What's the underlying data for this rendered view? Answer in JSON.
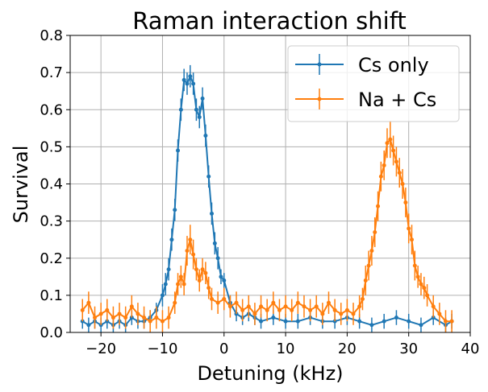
{
  "chart_data": {
    "type": "line",
    "title": "Raman interaction shift",
    "xlabel": "Detuning (kHz)",
    "ylabel": "Survival",
    "xlim": [
      -25,
      40
    ],
    "ylim": [
      0,
      0.8
    ],
    "xticks": [
      -20,
      -10,
      0,
      10,
      20,
      30,
      40
    ],
    "yticks": [
      0.0,
      0.1,
      0.2,
      0.3,
      0.4,
      0.5,
      0.6,
      0.7,
      0.8
    ],
    "xtick_labels": [
      "−20",
      "−10",
      "0",
      "10",
      "20",
      "30",
      "40"
    ],
    "ytick_labels": [
      "0.0",
      "0.1",
      "0.2",
      "0.3",
      "0.4",
      "0.5",
      "0.6",
      "0.7",
      "0.8"
    ],
    "grid": true,
    "error_bars": true,
    "legend_position": "top-right",
    "series": [
      {
        "name": "Cs only",
        "color": "#1f77b4",
        "x": [
          -23,
          -22,
          -21,
          -20,
          -19,
          -18,
          -17,
          -16,
          -15,
          -14,
          -13,
          -12,
          -11,
          -10,
          -9.5,
          -9,
          -8.5,
          -8,
          -7.5,
          -7,
          -6.5,
          -6,
          -5.5,
          -5,
          -4.5,
          -4,
          -3.5,
          -3,
          -2.5,
          -2,
          -1.5,
          -1,
          -0.5,
          0,
          1,
          2,
          3,
          4,
          5,
          6,
          8,
          10,
          12,
          14,
          16,
          18,
          20,
          22,
          24,
          26,
          28,
          30,
          32,
          34,
          36,
          37
        ],
        "values": [
          0.03,
          0.02,
          0.03,
          0.02,
          0.03,
          0.02,
          0.03,
          0.02,
          0.04,
          0.03,
          0.03,
          0.04,
          0.06,
          0.1,
          0.13,
          0.17,
          0.25,
          0.33,
          0.49,
          0.6,
          0.68,
          0.67,
          0.69,
          0.67,
          0.6,
          0.58,
          0.63,
          0.53,
          0.42,
          0.32,
          0.24,
          0.2,
          0.15,
          0.14,
          0.08,
          0.05,
          0.04,
          0.05,
          0.04,
          0.03,
          0.04,
          0.03,
          0.03,
          0.04,
          0.03,
          0.03,
          0.04,
          0.03,
          0.02,
          0.03,
          0.04,
          0.03,
          0.02,
          0.04,
          0.02,
          0.03
        ],
        "errors": [
          0.02,
          0.02,
          0.02,
          0.02,
          0.02,
          0.02,
          0.02,
          0.02,
          0.02,
          0.02,
          0.02,
          0.02,
          0.02,
          0.03,
          0.03,
          0.03,
          0.03,
          0.03,
          0.03,
          0.03,
          0.03,
          0.03,
          0.03,
          0.03,
          0.03,
          0.03,
          0.03,
          0.03,
          0.03,
          0.03,
          0.03,
          0.03,
          0.02,
          0.02,
          0.02,
          0.02,
          0.02,
          0.02,
          0.02,
          0.02,
          0.02,
          0.02,
          0.02,
          0.02,
          0.02,
          0.02,
          0.02,
          0.02,
          0.02,
          0.02,
          0.02,
          0.02,
          0.02,
          0.02,
          0.02,
          0.02
        ]
      },
      {
        "name": "Na + Cs",
        "color": "#ff7f0e",
        "x": [
          -23,
          -22,
          -21,
          -20,
          -19,
          -18,
          -17,
          -16,
          -15,
          -14,
          -13,
          -12,
          -11,
          -10,
          -9,
          -8,
          -7.5,
          -7,
          -6.5,
          -6,
          -5.5,
          -5,
          -4.5,
          -4,
          -3.5,
          -3,
          -2.5,
          -2,
          -1,
          0,
          1,
          2,
          3,
          4,
          5,
          6,
          7,
          8,
          9,
          10,
          11,
          12,
          13,
          14,
          15,
          16,
          17,
          18,
          19,
          20,
          21,
          22,
          22.5,
          23,
          23.5,
          24,
          24.5,
          25,
          25.5,
          26,
          26.5,
          27,
          27.5,
          28,
          28.5,
          29,
          29.5,
          30,
          30.5,
          31,
          31.5,
          32,
          32.5,
          33,
          34,
          35,
          36,
          37
        ],
        "values": [
          0.06,
          0.08,
          0.04,
          0.05,
          0.06,
          0.04,
          0.05,
          0.04,
          0.07,
          0.05,
          0.04,
          0.03,
          0.04,
          0.03,
          0.04,
          0.08,
          0.13,
          0.15,
          0.13,
          0.22,
          0.25,
          0.21,
          0.17,
          0.14,
          0.17,
          0.16,
          0.12,
          0.09,
          0.08,
          0.09,
          0.07,
          0.08,
          0.06,
          0.07,
          0.05,
          0.07,
          0.06,
          0.08,
          0.06,
          0.07,
          0.06,
          0.08,
          0.07,
          0.06,
          0.07,
          0.05,
          0.08,
          0.06,
          0.05,
          0.06,
          0.05,
          0.07,
          0.09,
          0.14,
          0.18,
          0.22,
          0.27,
          0.34,
          0.42,
          0.45,
          0.51,
          0.52,
          0.49,
          0.46,
          0.43,
          0.4,
          0.35,
          0.28,
          0.25,
          0.18,
          0.15,
          0.13,
          0.12,
          0.1,
          0.07,
          0.05,
          0.03,
          0.03
        ],
        "errors": [
          0.03,
          0.03,
          0.03,
          0.03,
          0.03,
          0.03,
          0.03,
          0.03,
          0.03,
          0.03,
          0.03,
          0.03,
          0.03,
          0.03,
          0.03,
          0.03,
          0.03,
          0.03,
          0.03,
          0.04,
          0.04,
          0.04,
          0.03,
          0.03,
          0.03,
          0.03,
          0.03,
          0.03,
          0.03,
          0.03,
          0.03,
          0.03,
          0.03,
          0.03,
          0.03,
          0.03,
          0.03,
          0.03,
          0.03,
          0.03,
          0.03,
          0.03,
          0.03,
          0.03,
          0.03,
          0.03,
          0.03,
          0.03,
          0.03,
          0.03,
          0.03,
          0.03,
          0.03,
          0.04,
          0.04,
          0.04,
          0.04,
          0.04,
          0.04,
          0.04,
          0.04,
          0.05,
          0.04,
          0.04,
          0.04,
          0.04,
          0.04,
          0.04,
          0.04,
          0.04,
          0.03,
          0.03,
          0.03,
          0.03,
          0.03,
          0.03,
          0.03,
          0.03
        ]
      }
    ]
  }
}
